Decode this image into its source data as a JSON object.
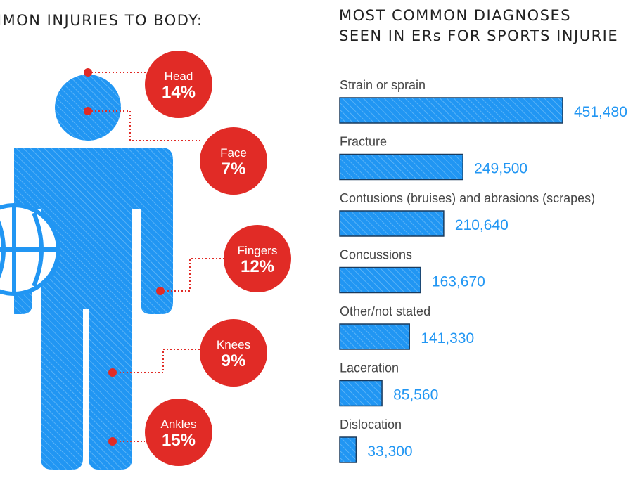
{
  "left_title": "MMON INJURIES TO BODY:",
  "right_title": [
    "MOST COMMON DIAGNOSES",
    "SEEN IN ERs FOR SPORTS INJURIE"
  ],
  "body_injuries": [
    {
      "label": "Head",
      "percent": "14%"
    },
    {
      "label": "Face",
      "percent": "7%"
    },
    {
      "label": "Fingers",
      "percent": "12%"
    },
    {
      "label": "Knees",
      "percent": "9%"
    },
    {
      "label": "Ankles",
      "percent": "15%"
    }
  ],
  "colors": {
    "figure": "#2196f3",
    "bubble": "#e12b26",
    "value_text": "#2196f3",
    "leader": "#e12b26"
  },
  "icons": [
    "person-figure-icon",
    "basketball-icon"
  ],
  "chart_data": {
    "type": "bar",
    "orientation": "horizontal",
    "title": "MOST COMMON DIAGNOSES SEEN IN ERs FOR SPORTS INJURIE",
    "categories": [
      "Strain or sprain",
      "Fracture",
      "Contusions (bruises) and abrasions (scrapes)",
      "Concussions",
      "Other/not stated",
      "Laceration",
      "Dislocation"
    ],
    "values": [
      451480,
      249500,
      210640,
      163670,
      141330,
      85560,
      33300
    ],
    "value_labels": [
      "451,480",
      "249,500",
      "210,640",
      "163,670",
      "141,330",
      "85,560",
      "33,300"
    ],
    "xlim": [
      0,
      451480
    ],
    "grid": false
  }
}
